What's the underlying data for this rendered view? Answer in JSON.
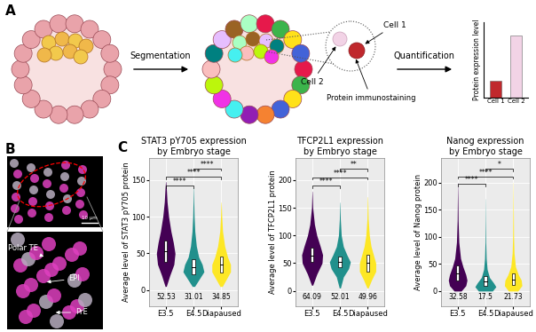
{
  "panel_a": {
    "label": "A",
    "steps": [
      "Segmentation",
      "Quantification"
    ],
    "cells": [
      "Cell 1",
      "Cell 2"
    ],
    "annotation": "Protein immunostaining",
    "chart": {
      "type": "bar",
      "categories": [
        "Cell 1",
        "Cell 2"
      ],
      "values": [
        0.22,
        0.82
      ],
      "colors": [
        "#C0282D",
        "#F2D3E6"
      ],
      "ylim": [
        0,
        1
      ],
      "ylabel": "Protein expression level",
      "tick_labels": "x"
    }
  },
  "panel_b": {
    "label": "B",
    "scale_bar": "10 μm",
    "annotations": [
      "Polar TE",
      "EPI",
      "PrE"
    ]
  },
  "panel_c": {
    "label": "C"
  },
  "chart_data": [
    {
      "type": "violin",
      "title": "STAT3 pY705 expression\nby Embryo stage",
      "ylabel": "Average level of STAT3 pY705 protein",
      "categories": [
        "E3.5",
        "E4.5",
        "Diapaused"
      ],
      "colors": [
        "#440154",
        "#21908C",
        "#FDE725"
      ],
      "ylim": [
        -22,
        180
      ],
      "yticks": [
        0,
        50,
        100,
        150
      ],
      "grid": true,
      "density": [
        {
          "y": [
            5,
            20,
            35,
            50,
            65,
            80,
            100,
            120,
            140,
            148
          ],
          "width": [
            0.05,
            0.35,
            0.7,
            0.8,
            0.65,
            0.45,
            0.25,
            0.12,
            0.05,
            0.01
          ]
        },
        {
          "y": [
            5,
            15,
            25,
            35,
            45,
            60,
            80,
            100,
            120,
            140
          ],
          "width": [
            0.1,
            0.5,
            0.9,
            0.75,
            0.45,
            0.25,
            0.12,
            0.06,
            0.03,
            0.01
          ]
        },
        {
          "y": [
            5,
            15,
            25,
            35,
            45,
            60,
            80,
            100,
            120
          ],
          "width": [
            0.1,
            0.45,
            0.8,
            0.8,
            0.55,
            0.3,
            0.12,
            0.05,
            0.01
          ]
        }
      ],
      "quartiles": [
        [
          38,
          68
        ],
        [
          22,
          42
        ],
        [
          24,
          46
        ]
      ],
      "medians": [
        52.53,
        31.01,
        34.85
      ],
      "significance": [
        {
          "pair": [
            0,
            1
          ],
          "y": 142,
          "label": "****"
        },
        {
          "pair": [
            0,
            2
          ],
          "y": 154,
          "label": "****"
        },
        {
          "pair": [
            1,
            2
          ],
          "y": 166,
          "label": "****"
        }
      ]
    },
    {
      "type": "violin",
      "title": "TFCP2L1 expression\nby Embryo stage",
      "ylabel": "Average level of TFCP2L1 protein",
      "categories": [
        "E3.5",
        "E4.5",
        "Diapaused"
      ],
      "colors": [
        "#440154",
        "#21908C",
        "#FDE725"
      ],
      "ylim": [
        -28,
        240
      ],
      "yticks": [
        0,
        50,
        100,
        150,
        200
      ],
      "grid": true,
      "density": [
        {
          "y": [
            10,
            30,
            50,
            65,
            80,
            100,
            120,
            150,
            180
          ],
          "width": [
            0.05,
            0.4,
            0.85,
            0.9,
            0.7,
            0.4,
            0.2,
            0.05,
            0.01
          ]
        },
        {
          "y": [
            5,
            25,
            40,
            52,
            65,
            80,
            100,
            130,
            160
          ],
          "width": [
            0.05,
            0.3,
            0.75,
            0.9,
            0.6,
            0.3,
            0.12,
            0.04,
            0.01
          ]
        },
        {
          "y": [
            5,
            20,
            35,
            50,
            65,
            80,
            100,
            130,
            170
          ],
          "width": [
            0.05,
            0.35,
            0.7,
            0.7,
            0.5,
            0.3,
            0.15,
            0.05,
            0.01
          ]
        }
      ],
      "quartiles": [
        [
          52,
          78
        ],
        [
          42,
          62
        ],
        [
          35,
          65
        ]
      ],
      "medians": [
        64.09,
        52.01,
        49.96
      ],
      "significance": [
        {
          "pair": [
            0,
            1
          ],
          "y": 190,
          "label": "****"
        },
        {
          "pair": [
            0,
            2
          ],
          "y": 205,
          "label": "****"
        },
        {
          "pair": [
            1,
            2
          ],
          "y": 220,
          "label": "**"
        }
      ]
    },
    {
      "type": "violin",
      "title": "Nanog expression\nby Embryo stage",
      "ylabel": "Average level of Nanog protein",
      "categories": [
        "E3.5",
        "E4.5",
        "Diapaused"
      ],
      "colors": [
        "#440154",
        "#21908C",
        "#FDE725"
      ],
      "ylim": [
        -28,
        245
      ],
      "yticks": [
        0,
        50,
        100,
        150,
        200
      ],
      "grid": true,
      "density": [
        {
          "y": [
            0,
            10,
            20,
            30,
            45,
            60,
            90,
            130,
            170,
            200
          ],
          "width": [
            0.3,
            0.7,
            0.8,
            0.7,
            0.45,
            0.25,
            0.1,
            0.04,
            0.02,
            0.005
          ]
        },
        {
          "y": [
            0,
            8,
            15,
            25,
            40,
            60,
            90,
            130,
            170
          ],
          "width": [
            0.6,
            0.9,
            0.7,
            0.35,
            0.15,
            0.07,
            0.03,
            0.015,
            0.005
          ]
        },
        {
          "y": [
            0,
            10,
            20,
            30,
            45,
            70,
            100,
            150,
            200
          ],
          "width": [
            0.4,
            0.75,
            0.7,
            0.45,
            0.2,
            0.08,
            0.04,
            0.02,
            0.005
          ]
        }
      ],
      "quartiles": [
        [
          20,
          48
        ],
        [
          10,
          27
        ],
        [
          12,
          32
        ]
      ],
      "medians": [
        32.58,
        17.5,
        21.73
      ],
      "significance": [
        {
          "pair": [
            0,
            1
          ],
          "y": 197,
          "label": "****"
        },
        {
          "pair": [
            0,
            2
          ],
          "y": 211,
          "label": "****"
        },
        {
          "pair": [
            1,
            2
          ],
          "y": 225,
          "label": "*"
        }
      ]
    }
  ]
}
